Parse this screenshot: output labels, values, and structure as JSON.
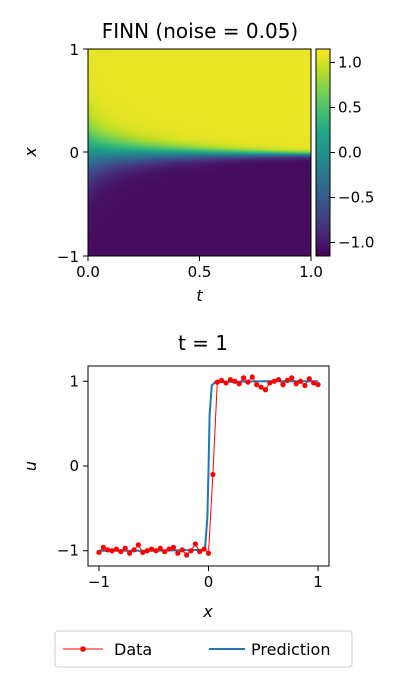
{
  "chart_data": [
    {
      "type": "heatmap",
      "title": "FINN (noise = 0.05)",
      "xlabel": "t",
      "ylabel": "x",
      "xlim": [
        0,
        1
      ],
      "ylim": [
        -1,
        1
      ],
      "xticks": [
        0,
        0.5,
        1
      ],
      "xtick_labels": [
        "0.0",
        "0.5",
        "1.0"
      ],
      "yticks": [
        -1,
        0,
        1
      ],
      "ytick_labels": [
        "−1",
        "0",
        "1"
      ],
      "colormap": "viridis",
      "clim": [
        -1.15,
        1.15
      ],
      "colorbar_ticks": [
        1.0,
        0.5,
        0.0,
        -0.5,
        -1.0
      ],
      "colorbar_tick_labels": [
        "1.0",
        "0.5",
        "0.0",
        "−0.5",
        "−1.0"
      ],
      "field_description": "u(t,x): value about +1 for x>0 and about −1 for x<0, with a smooth transition that sharpens as t increases",
      "front_initial_width": 0.35,
      "front_final_width": 0.03
    },
    {
      "type": "line",
      "title": "t = 1",
      "xlabel": "x",
      "ylabel": "u",
      "xlim": [
        -1.1,
        1.1
      ],
      "ylim": [
        -1.18,
        1.18
      ],
      "xticks": [
        -1,
        0,
        1
      ],
      "xtick_labels": [
        "−1",
        "0",
        "1"
      ],
      "yticks": [
        -1,
        0,
        1
      ],
      "ytick_labels": [
        "−1",
        "0",
        "1"
      ],
      "series": [
        {
          "name": "Data",
          "color": "#ff0000",
          "marker": "dot",
          "x": [
            -1.0,
            -0.96,
            -0.92,
            -0.88,
            -0.84,
            -0.8,
            -0.76,
            -0.72,
            -0.68,
            -0.64,
            -0.6,
            -0.56,
            -0.52,
            -0.48,
            -0.44,
            -0.4,
            -0.36,
            -0.32,
            -0.28,
            -0.24,
            -0.2,
            -0.16,
            -0.12,
            -0.08,
            -0.04,
            0.0,
            0.04,
            0.08,
            0.12,
            0.16,
            0.2,
            0.24,
            0.28,
            0.32,
            0.36,
            0.4,
            0.44,
            0.48,
            0.52,
            0.56,
            0.6,
            0.64,
            0.68,
            0.72,
            0.76,
            0.8,
            0.84,
            0.88,
            0.92,
            0.96,
            1.0
          ],
          "y": [
            -1.02,
            -0.96,
            -0.99,
            -1.0,
            -0.98,
            -1.01,
            -0.97,
            -1.03,
            -0.99,
            -0.93,
            -1.02,
            -1.0,
            -0.98,
            -1.0,
            -0.97,
            -1.01,
            -0.98,
            -0.96,
            -1.03,
            -0.99,
            -1.05,
            -1.0,
            -0.92,
            -1.01,
            -0.98,
            -1.03,
            -0.1,
            0.99,
            1.01,
            0.98,
            1.02,
            1.0,
            0.97,
            1.04,
            0.99,
            1.05,
            0.96,
            0.93,
            0.9,
            0.98,
            1.0,
            1.02,
            0.96,
            1.01,
            1.04,
            0.97,
            1.0,
            0.95,
            1.03,
            0.98,
            0.96
          ]
        },
        {
          "name": "Prediction",
          "color": "#1f77b4",
          "x": [
            -1.0,
            -0.5,
            -0.06,
            -0.03,
            -0.01,
            0.0,
            0.01,
            0.03,
            0.06,
            0.5,
            1.0
          ],
          "y": [
            -1.0,
            -1.0,
            -0.99,
            -0.95,
            -0.6,
            -0.05,
            0.6,
            0.95,
            0.99,
            1.0,
            1.0
          ]
        }
      ],
      "legend_placement": "bottom-center"
    }
  ]
}
